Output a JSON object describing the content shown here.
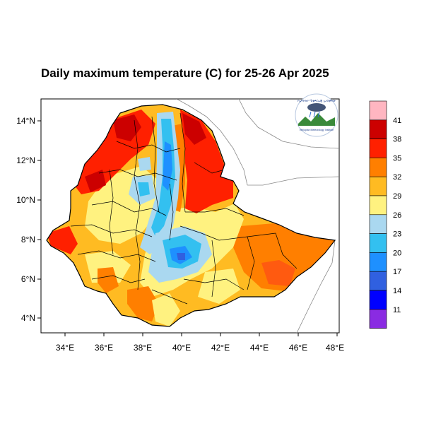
{
  "title": "Daily maximum temperature (C) for 25-26 Apr 2025",
  "logo": {
    "text_top": "የኢትዮጵያ ሜቲዎሮሎጂ ኢንስቲትዩት",
    "text_bottom": "Ethiopian Meteorology Institute"
  },
  "map": {
    "lon_ticks": [
      "34°E",
      "36°E",
      "38°E",
      "40°E",
      "42°E",
      "44°E",
      "46°E",
      "48°E"
    ],
    "lat_ticks": [
      "14°N",
      "12°N",
      "10°N",
      "8°N",
      "6°N",
      "4°N"
    ],
    "lon_range": [
      33,
      48.2
    ],
    "lat_range": [
      3.2,
      15
    ]
  },
  "colorbar": {
    "labels": [
      "41",
      "38",
      "35",
      "32",
      "29",
      "26",
      "23",
      "20",
      "17",
      "14",
      "11"
    ],
    "colors": [
      "#ffb6c1",
      "#cc0000",
      "#ff2000",
      "#ff7f00",
      "#ffbb22",
      "#fff280",
      "#aad8f0",
      "#33c0f0",
      "#1e90ff",
      "#3060e0",
      "#0000ff",
      "#8a2be2"
    ]
  },
  "colors": {
    "hot": "#ff2000",
    "very_hot": "#cc0000",
    "warm": "#ff7f00",
    "mild": "#ffbb22",
    "cool_yellow": "#fff280",
    "light_blue": "#aad8f0",
    "blue": "#33c0f0",
    "deep_blue": "#1e90ff"
  }
}
